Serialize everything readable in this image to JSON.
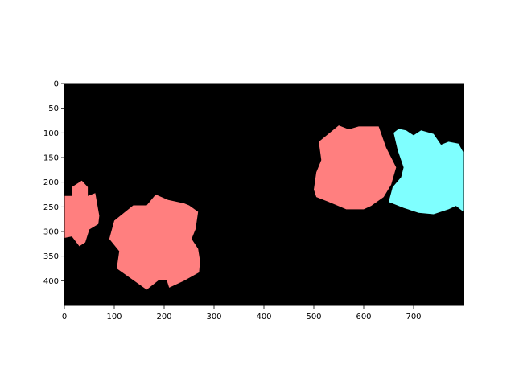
{
  "chart_data": {
    "type": "image",
    "xlim": [
      0,
      800
    ],
    "ylim": [
      450,
      0
    ],
    "x_ticks": [
      0,
      100,
      200,
      300,
      400,
      500,
      600,
      700
    ],
    "y_ticks": [
      0,
      50,
      100,
      150,
      200,
      250,
      300,
      350,
      400
    ],
    "background_color": "#000000",
    "regions": [
      {
        "color": "#ff7f7f",
        "points": [
          [
            0,
            228
          ],
          [
            15,
            228
          ],
          [
            15,
            210
          ],
          [
            35,
            197
          ],
          [
            47,
            210
          ],
          [
            47,
            228
          ],
          [
            62,
            222
          ],
          [
            70,
            268
          ],
          [
            68,
            285
          ],
          [
            50,
            296
          ],
          [
            42,
            322
          ],
          [
            30,
            330
          ],
          [
            15,
            310
          ],
          [
            0,
            313
          ]
        ]
      },
      {
        "color": "#ff7f7f",
        "points": [
          [
            100,
            278
          ],
          [
            138,
            247
          ],
          [
            165,
            247
          ],
          [
            183,
            225
          ],
          [
            208,
            236
          ],
          [
            240,
            243
          ],
          [
            250,
            247
          ],
          [
            268,
            260
          ],
          [
            263,
            295
          ],
          [
            255,
            315
          ],
          [
            268,
            335
          ],
          [
            272,
            360
          ],
          [
            270,
            383
          ],
          [
            240,
            400
          ],
          [
            210,
            414
          ],
          [
            205,
            398
          ],
          [
            190,
            398
          ],
          [
            165,
            418
          ],
          [
            105,
            375
          ],
          [
            110,
            340
          ],
          [
            90,
            315
          ]
        ]
      },
      {
        "color": "#ff7f7f",
        "points": [
          [
            510,
            118
          ],
          [
            550,
            85
          ],
          [
            570,
            93
          ],
          [
            590,
            87
          ],
          [
            630,
            87
          ],
          [
            645,
            130
          ],
          [
            665,
            170
          ],
          [
            655,
            205
          ],
          [
            640,
            230
          ],
          [
            615,
            248
          ],
          [
            600,
            255
          ],
          [
            565,
            255
          ],
          [
            530,
            240
          ],
          [
            505,
            230
          ],
          [
            500,
            215
          ],
          [
            505,
            180
          ],
          [
            515,
            155
          ]
        ]
      },
      {
        "color": "#7fffff",
        "points": [
          [
            660,
            100
          ],
          [
            670,
            92
          ],
          [
            685,
            95
          ],
          [
            700,
            105
          ],
          [
            715,
            95
          ],
          [
            740,
            102
          ],
          [
            755,
            124
          ],
          [
            770,
            118
          ],
          [
            790,
            122
          ],
          [
            800,
            140
          ],
          [
            800,
            260
          ],
          [
            785,
            248
          ],
          [
            770,
            255
          ],
          [
            740,
            265
          ],
          [
            710,
            262
          ],
          [
            680,
            252
          ],
          [
            650,
            240
          ],
          [
            658,
            210
          ],
          [
            675,
            190
          ],
          [
            680,
            170
          ],
          [
            668,
            135
          ]
        ]
      }
    ]
  }
}
